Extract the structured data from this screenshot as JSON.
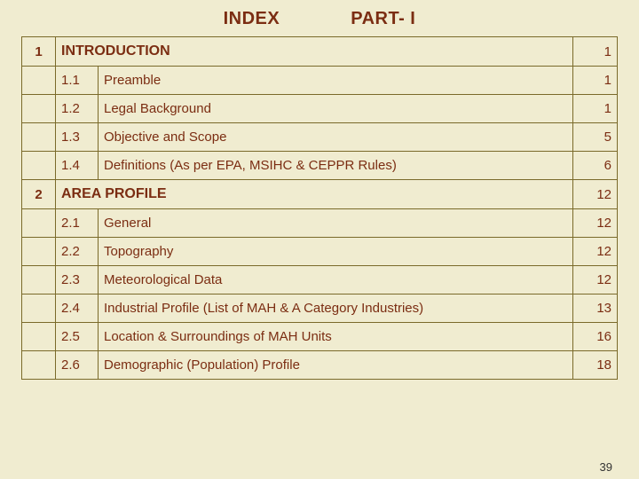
{
  "header": {
    "left": "INDEX",
    "right": "PART- I"
  },
  "colors": {
    "background": "#f0ecd0",
    "text_heading": "#7b2d12",
    "text_body": "#7b2d12",
    "border": "#7a6a2a"
  },
  "sections": [
    {
      "num": "1",
      "title": "INTRODUCTION",
      "page": "1",
      "items": [
        {
          "sub": "1.1",
          "title": "Preamble",
          "page": "1"
        },
        {
          "sub": "1.2",
          "title": "Legal Background",
          "page": "1"
        },
        {
          "sub": "1.3",
          "title": "Objective and Scope",
          "page": "5"
        },
        {
          "sub": "1.4",
          "title": "Definitions (As per EPA, MSIHC & CEPPR Rules)",
          "page": "6"
        }
      ]
    },
    {
      "num": "2",
      "title": "AREA PROFILE",
      "page": "12",
      "items": [
        {
          "sub": "2.1",
          "title": "General",
          "page": "12"
        },
        {
          "sub": "2.2",
          "title": "Topography",
          "page": "12"
        },
        {
          "sub": "2.3",
          "title": "Meteorological Data",
          "page": "12"
        },
        {
          "sub": "2.4",
          "title": "Industrial Profile (List of MAH & A Category Industries)",
          "page": "13"
        },
        {
          "sub": "2.5",
          "title": "Location & Surroundings of MAH Units",
          "page": "16"
        },
        {
          "sub": "2.6",
          "title": "Demographic (Population) Profile",
          "page": "18"
        }
      ]
    }
  ],
  "slide_number": "39"
}
